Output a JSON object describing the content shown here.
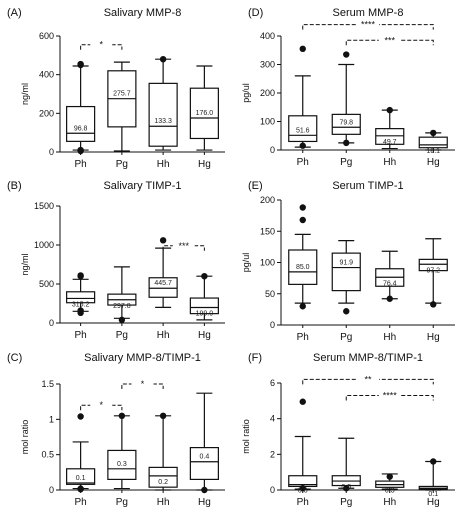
{
  "chart_data": [
    {
      "type": "boxplot",
      "letter": "(A)",
      "title": "Salivary MMP-8",
      "ylabel": "ng/ml",
      "ylim": [
        0,
        600
      ],
      "yticks": [
        0,
        200,
        400,
        600
      ],
      "categories": [
        "Ph",
        "Pg",
        "Hh",
        "Hg"
      ],
      "boxes": [
        {
          "min": 10,
          "q1": 55,
          "median": 96.8,
          "q3": 235,
          "max": 445,
          "label": "96.8",
          "outliers": [
            450,
            455,
            10,
            5
          ]
        },
        {
          "min": 5,
          "q1": 130,
          "median": 275.7,
          "q3": 420,
          "max": 465,
          "label": "275.7",
          "outliers": []
        },
        {
          "min": 10,
          "q1": 30,
          "median": 133.3,
          "q3": 355,
          "max": 480,
          "label": "133.3",
          "outliers": [
            480
          ]
        },
        {
          "min": 10,
          "q1": 70,
          "median": 176.0,
          "q3": 330,
          "max": 445,
          "label": "176.0",
          "outliers": []
        }
      ],
      "brackets": [
        {
          "from": 0,
          "to": 1,
          "y": 555,
          "label": "*"
        }
      ]
    },
    {
      "type": "boxplot",
      "letter": "(B)",
      "title": "Salivary TIMP-1",
      "ylabel": "ng/ml",
      "ylim": [
        0,
        1500
      ],
      "yticks": [
        0,
        500,
        1000,
        1500
      ],
      "categories": [
        "Ph",
        "Pg",
        "Hh",
        "Hg"
      ],
      "boxes": [
        {
          "min": 150,
          "q1": 260,
          "median": 315.2,
          "q3": 400,
          "max": 560,
          "label": "315.2",
          "outliers": [
            600,
            610,
            130,
            160
          ]
        },
        {
          "min": 60,
          "q1": 230,
          "median": 297.8,
          "q3": 370,
          "max": 720,
          "label": "297.8",
          "outliers": [
            40
          ]
        },
        {
          "min": 200,
          "q1": 330,
          "median": 445.7,
          "q3": 580,
          "max": 960,
          "label": "445.7",
          "outliers": [
            1060
          ]
        },
        {
          "min": 40,
          "q1": 120,
          "median": 199.0,
          "q3": 320,
          "max": 600,
          "label": "199.0",
          "outliers": [
            600
          ]
        }
      ],
      "brackets": [
        {
          "from": 2,
          "to": 3,
          "y": 990,
          "label": "***"
        }
      ]
    },
    {
      "type": "boxplot",
      "letter": "(C)",
      "title": "Salivary MMP-8/TIMP-1",
      "ylabel": "mol ratio",
      "ylim": [
        0,
        1.5
      ],
      "yticks": [
        0,
        0.5,
        1.0,
        1.5
      ],
      "categories": [
        "Ph",
        "Pg",
        "Hh",
        "Hg"
      ],
      "boxes": [
        {
          "min": 0.02,
          "q1": 0.08,
          "median": 0.1,
          "q3": 0.3,
          "max": 0.68,
          "label": "0.1",
          "outliers": [
            1.04,
            0.02,
            0.01
          ]
        },
        {
          "min": 0.02,
          "q1": 0.15,
          "median": 0.3,
          "q3": 0.56,
          "max": 1.05,
          "label": "0.3",
          "outliers": [
            1.05
          ]
        },
        {
          "min": 0.0,
          "q1": 0.04,
          "median": 0.2,
          "q3": 0.32,
          "max": 1.05,
          "label": "0.2",
          "outliers": [
            1.05
          ]
        },
        {
          "min": 0.0,
          "q1": 0.15,
          "median": 0.4,
          "q3": 0.6,
          "max": 1.37,
          "label": "0.4",
          "outliers": [
            0.0
          ]
        }
      ],
      "brackets": [
        {
          "from": 0,
          "to": 1,
          "y": 1.2,
          "label": "*"
        },
        {
          "from": 1,
          "to": 2,
          "y": 1.5,
          "label": "*"
        }
      ]
    },
    {
      "type": "boxplot",
      "letter": "(D)",
      "title": "Serum MMP-8",
      "ylabel": "pg/ul",
      "ylim": [
        0,
        400
      ],
      "yticks": [
        0,
        100,
        200,
        300,
        400
      ],
      "categories": [
        "Ph",
        "Pg",
        "Hh",
        "Hg"
      ],
      "boxes": [
        {
          "min": 10,
          "q1": 30,
          "median": 51.6,
          "q3": 120,
          "max": 260,
          "label": "51.6",
          "outliers": [
            355,
            15
          ]
        },
        {
          "min": 25,
          "q1": 55,
          "median": 79.8,
          "q3": 125,
          "max": 300,
          "label": "79.8",
          "outliers": [
            335,
            25
          ]
        },
        {
          "min": 5,
          "q1": 20,
          "median": 49.7,
          "q3": 75,
          "max": 140,
          "label": "49.7",
          "outliers": [
            140
          ]
        },
        {
          "min": 0,
          "q1": 8,
          "median": 18.1,
          "q3": 45,
          "max": 60,
          "label": "18.1",
          "outliers": [
            60
          ]
        }
      ],
      "brackets": [
        {
          "from": 0,
          "to": 3,
          "y": 440,
          "label": "****"
        },
        {
          "from": 1,
          "to": 3,
          "y": 385,
          "label": "***"
        }
      ]
    },
    {
      "type": "boxplot",
      "letter": "(E)",
      "title": "Serum TIMP-1",
      "ylabel": "pg/ul",
      "ylim": [
        0,
        200
      ],
      "yticks": [
        0,
        50,
        100,
        150,
        200
      ],
      "categories": [
        "Ph",
        "Pg",
        "Hh",
        "Hg"
      ],
      "boxes": [
        {
          "min": 35,
          "q1": 65,
          "median": 85.0,
          "q3": 120,
          "max": 145,
          "label": "85.0",
          "outliers": [
            188,
            168,
            30
          ]
        },
        {
          "min": 35,
          "q1": 55,
          "median": 91.9,
          "q3": 115,
          "max": 135,
          "label": "91.9",
          "outliers": [
            22
          ]
        },
        {
          "min": 42,
          "q1": 62,
          "median": 76.4,
          "q3": 90,
          "max": 118,
          "label": "76.4",
          "outliers": [
            42
          ]
        },
        {
          "min": 35,
          "q1": 87,
          "median": 97.2,
          "q3": 105,
          "max": 138,
          "label": "97.2",
          "outliers": [
            33
          ]
        }
      ],
      "brackets": []
    },
    {
      "type": "boxplot",
      "letter": "(F)",
      "title": "Serum MMP-8/TIMP-1",
      "ylabel": "mol ratio",
      "ylim": [
        0,
        6
      ],
      "yticks": [
        0,
        2,
        4,
        6
      ],
      "categories": [
        "Ph",
        "Pg",
        "Hh",
        "Hg"
      ],
      "boxes": [
        {
          "min": 0.05,
          "q1": 0.2,
          "median": 0.3,
          "q3": 0.8,
          "max": 3.0,
          "label": "0.3",
          "outliers": [
            4.95,
            0.1
          ]
        },
        {
          "min": 0.1,
          "q1": 0.25,
          "median": 0.5,
          "q3": 0.8,
          "max": 2.9,
          "label": "0.5",
          "outliers": [
            0.1
          ]
        },
        {
          "min": 0.05,
          "q1": 0.15,
          "median": 0.3,
          "q3": 0.5,
          "max": 0.9,
          "label": "0.3",
          "outliers": [
            0.75
          ]
        },
        {
          "min": 0.0,
          "q1": 0.05,
          "median": 0.1,
          "q3": 0.2,
          "max": 1.6,
          "label": "0.1",
          "outliers": [
            1.6
          ]
        }
      ],
      "brackets": [
        {
          "from": 0,
          "to": 3,
          "y": 6.2,
          "label": "**"
        },
        {
          "from": 1,
          "to": 3,
          "y": 5.3,
          "label": "****"
        }
      ]
    }
  ]
}
